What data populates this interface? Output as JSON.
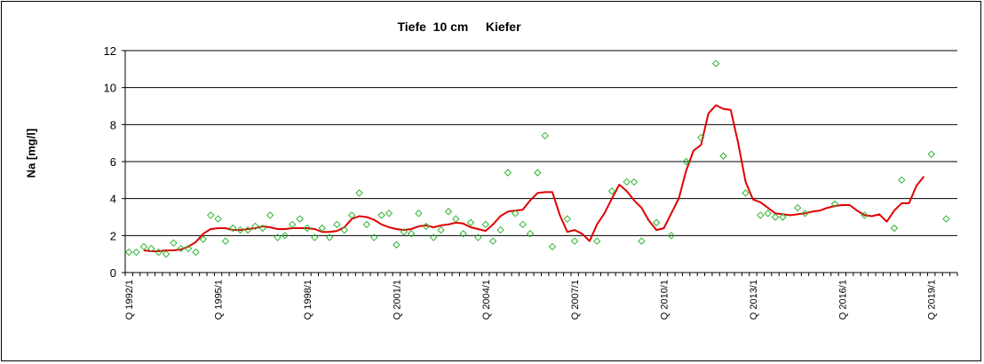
{
  "chart_data": {
    "type": "line",
    "title": "Tiefe  10 cm     Kiefer",
    "xlabel": "",
    "ylabel": "Na [mg/l]",
    "ylim": [
      0,
      12
    ],
    "yticks": [
      "0",
      "2",
      "4",
      "6",
      "8",
      "10",
      "12"
    ],
    "x_tick_labels": [
      "Q 1992/1",
      "Q 1995/1",
      "Q 1998/1",
      "Q 2001/1",
      "Q 2004/1",
      "Q 2007/1",
      "Q 2010/1",
      "Q 2013/1",
      "Q 2016/1",
      "Q 2019/1"
    ],
    "x_tick_label_quarter_index": [
      0,
      12,
      24,
      36,
      48,
      60,
      72,
      84,
      96,
      108
    ],
    "quarter_count": 112,
    "grid": "horizontal",
    "series": [
      {
        "kind": "scatter",
        "color": "#2db42d",
        "marker": "diamond-open",
        "points": [
          [
            0,
            1.1
          ],
          [
            1,
            1.1
          ],
          [
            2,
            1.4
          ],
          [
            3,
            1.3
          ],
          [
            4,
            1.1
          ],
          [
            5,
            1.0
          ],
          [
            6,
            1.6
          ],
          [
            7,
            1.3
          ],
          [
            8,
            1.3
          ],
          [
            9,
            1.1
          ],
          [
            10,
            1.8
          ],
          [
            11,
            3.1
          ],
          [
            12,
            2.9
          ],
          [
            13,
            1.7
          ],
          [
            14,
            2.4
          ],
          [
            15,
            2.3
          ],
          [
            16,
            2.3
          ],
          [
            17,
            2.5
          ],
          [
            18,
            2.4
          ],
          [
            19,
            3.1
          ],
          [
            20,
            1.9
          ],
          [
            21,
            2.0
          ],
          [
            22,
            2.6
          ],
          [
            23,
            2.9
          ],
          [
            24,
            2.4
          ],
          [
            25,
            1.9
          ],
          [
            26,
            2.4
          ],
          [
            27,
            1.9
          ],
          [
            28,
            2.6
          ],
          [
            29,
            2.3
          ],
          [
            30,
            3.1
          ],
          [
            31,
            4.3
          ],
          [
            32,
            2.6
          ],
          [
            33,
            1.9
          ],
          [
            34,
            3.1
          ],
          [
            35,
            3.2
          ],
          [
            36,
            1.5
          ],
          [
            37,
            2.2
          ],
          [
            38,
            2.1
          ],
          [
            39,
            3.2
          ],
          [
            40,
            2.5
          ],
          [
            41,
            1.9
          ],
          [
            42,
            2.3
          ],
          [
            43,
            3.3
          ],
          [
            44,
            2.9
          ],
          [
            45,
            2.1
          ],
          [
            46,
            2.7
          ],
          [
            47,
            1.9
          ],
          [
            48,
            2.6
          ],
          [
            49,
            1.7
          ],
          [
            50,
            2.3
          ],
          [
            51,
            5.4
          ],
          [
            52,
            3.2
          ],
          [
            53,
            2.6
          ],
          [
            54,
            2.1
          ],
          [
            55,
            5.4
          ],
          [
            56,
            7.4
          ],
          [
            57,
            1.4
          ],
          [
            59,
            2.9
          ],
          [
            60,
            1.7
          ],
          [
            63,
            1.7
          ],
          [
            65,
            4.4
          ],
          [
            67,
            4.9
          ],
          [
            68,
            4.9
          ],
          [
            69,
            1.7
          ],
          [
            71,
            2.7
          ],
          [
            73,
            2.0
          ],
          [
            75,
            6.0
          ],
          [
            77,
            7.3
          ],
          [
            79,
            11.3
          ],
          [
            80,
            6.3
          ],
          [
            83,
            4.3
          ],
          [
            85,
            3.1
          ],
          [
            86,
            3.2
          ],
          [
            87,
            3.0
          ],
          [
            88,
            3.0
          ],
          [
            90,
            3.5
          ],
          [
            91,
            3.2
          ],
          [
            95,
            3.7
          ],
          [
            99,
            3.1
          ],
          [
            103,
            2.4
          ],
          [
            104,
            5.0
          ],
          [
            108,
            6.4
          ],
          [
            110,
            2.9
          ]
        ]
      },
      {
        "kind": "line",
        "color": "#e00000",
        "points": [
          [
            2,
            1.2
          ],
          [
            3,
            1.15
          ],
          [
            4,
            1.15
          ],
          [
            5,
            1.2
          ],
          [
            6,
            1.2
          ],
          [
            7,
            1.25
          ],
          [
            8,
            1.4
          ],
          [
            9,
            1.65
          ],
          [
            10,
            2.1
          ],
          [
            11,
            2.35
          ],
          [
            12,
            2.4
          ],
          [
            13,
            2.4
          ],
          [
            14,
            2.3
          ],
          [
            15,
            2.3
          ],
          [
            16,
            2.35
          ],
          [
            17,
            2.4
          ],
          [
            18,
            2.5
          ],
          [
            19,
            2.45
          ],
          [
            20,
            2.35
          ],
          [
            21,
            2.35
          ],
          [
            22,
            2.4
          ],
          [
            23,
            2.4
          ],
          [
            24,
            2.4
          ],
          [
            25,
            2.35
          ],
          [
            26,
            2.2
          ],
          [
            27,
            2.2
          ],
          [
            28,
            2.25
          ],
          [
            29,
            2.45
          ],
          [
            30,
            2.9
          ],
          [
            31,
            3.05
          ],
          [
            32,
            3.0
          ],
          [
            33,
            2.85
          ],
          [
            34,
            2.6
          ],
          [
            35,
            2.45
          ],
          [
            36,
            2.35
          ],
          [
            37,
            2.3
          ],
          [
            38,
            2.35
          ],
          [
            39,
            2.5
          ],
          [
            40,
            2.55
          ],
          [
            41,
            2.45
          ],
          [
            42,
            2.55
          ],
          [
            43,
            2.6
          ],
          [
            44,
            2.7
          ],
          [
            45,
            2.65
          ],
          [
            46,
            2.45
          ],
          [
            47,
            2.35
          ],
          [
            48,
            2.25
          ],
          [
            49,
            2.6
          ],
          [
            50,
            3.05
          ],
          [
            51,
            3.3
          ],
          [
            52,
            3.35
          ],
          [
            53,
            3.4
          ],
          [
            54,
            3.9
          ],
          [
            55,
            4.3
          ],
          [
            56,
            4.35
          ],
          [
            57,
            4.35
          ],
          [
            58,
            3.1
          ],
          [
            59,
            2.2
          ],
          [
            60,
            2.3
          ],
          [
            61,
            2.1
          ],
          [
            62,
            1.7
          ],
          [
            63,
            2.6
          ],
          [
            64,
            3.2
          ],
          [
            65,
            4.0
          ],
          [
            66,
            4.75
          ],
          [
            67,
            4.4
          ],
          [
            68,
            3.9
          ],
          [
            69,
            3.5
          ],
          [
            70,
            2.8
          ],
          [
            71,
            2.3
          ],
          [
            72,
            2.4
          ],
          [
            73,
            3.2
          ],
          [
            74,
            4.0
          ],
          [
            75,
            5.5
          ],
          [
            76,
            6.6
          ],
          [
            77,
            6.9
          ],
          [
            78,
            8.6
          ],
          [
            79,
            9.05
          ],
          [
            80,
            8.85
          ],
          [
            81,
            8.8
          ],
          [
            82,
            7.0
          ],
          [
            83,
            4.9
          ],
          [
            84,
            3.95
          ],
          [
            85,
            3.8
          ],
          [
            86,
            3.5
          ],
          [
            87,
            3.2
          ],
          [
            88,
            3.15
          ],
          [
            89,
            3.1
          ],
          [
            90,
            3.15
          ],
          [
            91,
            3.2
          ],
          [
            92,
            3.3
          ],
          [
            93,
            3.35
          ],
          [
            94,
            3.5
          ],
          [
            95,
            3.6
          ],
          [
            96,
            3.65
          ],
          [
            97,
            3.65
          ],
          [
            98,
            3.35
          ],
          [
            99,
            3.1
          ],
          [
            100,
            3.05
          ],
          [
            101,
            3.15
          ],
          [
            102,
            2.75
          ],
          [
            103,
            3.35
          ],
          [
            104,
            3.75
          ],
          [
            105,
            3.75
          ],
          [
            106,
            4.7
          ],
          [
            107,
            5.2
          ]
        ]
      }
    ]
  }
}
